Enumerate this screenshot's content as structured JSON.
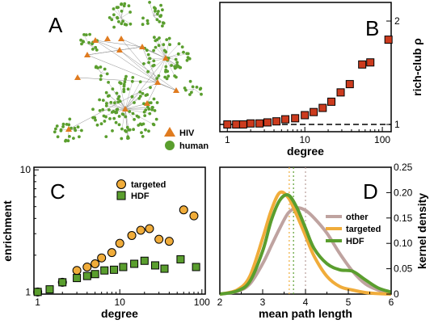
{
  "panels": {
    "a": "A",
    "b": "B",
    "c": "C",
    "d": "D"
  },
  "network": {
    "legend": [
      {
        "label": "HIV",
        "color": "#e07b1f",
        "shape": "triangle"
      },
      {
        "label": "human",
        "color": "#5a9e2e",
        "shape": "circle"
      }
    ]
  },
  "chart_data": [
    {
      "panel": "B",
      "type": "scatter",
      "xscale": "log",
      "xlim": [
        0.8,
        130
      ],
      "ylim": [
        0.93,
        2.18
      ],
      "xticks": [
        1,
        10,
        100
      ],
      "yticks": [
        1,
        2
      ],
      "xlabel": "degree",
      "ylabel": "rich-club ρ",
      "reference_line": 1,
      "marker_color": "#cc3b1e",
      "x": [
        1,
        1.3,
        1.6,
        2,
        2.6,
        3.3,
        4.3,
        5.6,
        7.5,
        10,
        13,
        17,
        22,
        29,
        38,
        55,
        70,
        120
      ],
      "y": [
        1.0,
        1.0,
        1.0,
        1.01,
        1.01,
        1.02,
        1.03,
        1.05,
        1.06,
        1.09,
        1.12,
        1.16,
        1.22,
        1.31,
        1.39,
        1.58,
        1.6,
        1.82
      ]
    },
    {
      "panel": "C",
      "type": "scatter",
      "xscale": "log",
      "yscale": "log",
      "xlim": [
        0.9,
        110
      ],
      "ylim": [
        0.96,
        10.5
      ],
      "xticks": [
        1,
        10,
        100
      ],
      "yticks": [
        1,
        10
      ],
      "xlabel": "degree",
      "ylabel": "enrichment",
      "series": [
        {
          "name": "targeted",
          "color": "#f0ac3a",
          "marker": "circle",
          "x": [
            1,
            2,
            3,
            4,
            5,
            6,
            8,
            10,
            14,
            18,
            23,
            30,
            40,
            60,
            80
          ],
          "y": [
            1.0,
            1.2,
            1.5,
            1.6,
            1.7,
            1.9,
            2.1,
            2.5,
            2.9,
            3.2,
            3.3,
            2.7,
            2.6,
            4.7,
            4.2
          ]
        },
        {
          "name": "HDF",
          "color": "#5a9e2e",
          "marker": "square",
          "x": [
            1,
            1.4,
            2,
            3,
            4,
            5,
            6.5,
            8.5,
            11,
            15,
            20,
            27,
            35,
            55,
            85
          ],
          "y": [
            1.0,
            1.05,
            1.2,
            1.3,
            1.35,
            1.4,
            1.5,
            1.52,
            1.6,
            1.7,
            1.8,
            1.65,
            1.55,
            1.85,
            1.6
          ]
        }
      ]
    },
    {
      "panel": "D",
      "type": "line",
      "xlim": [
        2,
        6
      ],
      "ylim": [
        0,
        0.25
      ],
      "xticks": [
        2,
        3,
        4,
        5,
        6
      ],
      "yticks": [
        0,
        0.05,
        0.1,
        0.15,
        0.2,
        0.25
      ],
      "xlabel": "mean path length",
      "ylabel": "kernel density",
      "vlines": [
        {
          "x": 3.62,
          "color": "#f0ac3a"
        },
        {
          "x": 3.72,
          "color": "#5a9e2e"
        },
        {
          "x": 4.0,
          "color": "#b79e9a"
        }
      ],
      "x": [
        2.0,
        2.4,
        2.7,
        3.0,
        3.2,
        3.4,
        3.6,
        3.8,
        4.0,
        4.2,
        4.5,
        4.8,
        5.1,
        5.4,
        5.7,
        6.0
      ],
      "series": [
        {
          "name": "other",
          "color": "#bfa3a0",
          "y": [
            0.0,
            0.005,
            0.02,
            0.06,
            0.095,
            0.13,
            0.16,
            0.17,
            0.165,
            0.15,
            0.12,
            0.08,
            0.045,
            0.02,
            0.008,
            0.002
          ]
        },
        {
          "name": "targeted",
          "color": "#f0ac3a",
          "y": [
            0.0,
            0.008,
            0.035,
            0.11,
            0.165,
            0.2,
            0.19,
            0.155,
            0.115,
            0.075,
            0.035,
            0.015,
            0.008,
            0.003,
            0.001,
            0.0
          ]
        },
        {
          "name": "HDF",
          "color": "#5a9e2e",
          "y": [
            0.0,
            0.006,
            0.025,
            0.085,
            0.145,
            0.185,
            0.195,
            0.17,
            0.13,
            0.09,
            0.06,
            0.048,
            0.045,
            0.028,
            0.012,
            0.004
          ]
        }
      ]
    }
  ]
}
